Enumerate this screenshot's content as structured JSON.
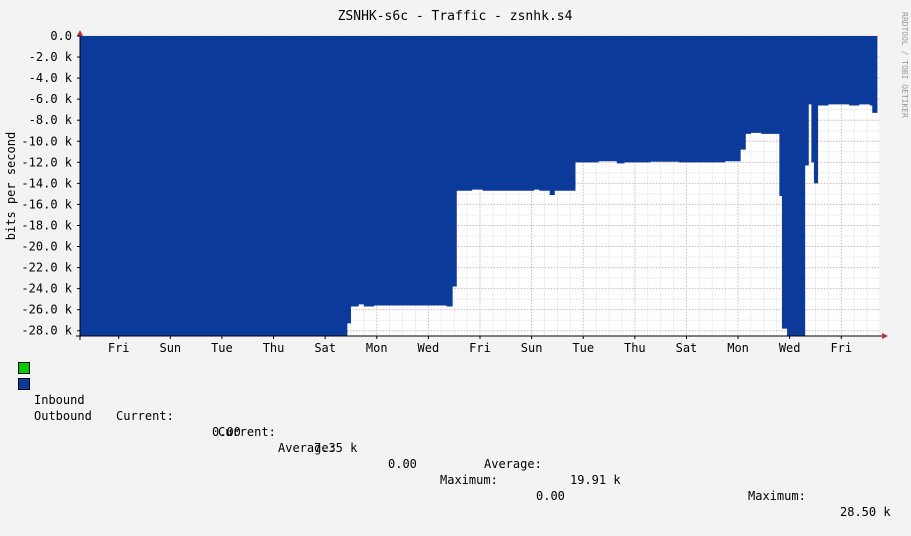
{
  "title": "ZSNHK-s6c - Traffic - zsnhk.s4",
  "side_text": "RRDTOOL / TOBI OETIKER",
  "colors": {
    "background": "#f3f3f3",
    "canvas": "#ffffff",
    "outbound": "#0b3a9a",
    "inbound": "#00cc00",
    "grid": "#e0b0b0",
    "axis": "#000000"
  },
  "legend": {
    "inbound": {
      "name": "Inbound",
      "current_label": "Current:",
      "current_value": "0.00",
      "average_label": "Average:",
      "average_value": "0.00",
      "maximum_label": "Maximum:",
      "maximum_value": "0.00"
    },
    "outbound": {
      "name": "Outbound",
      "current_label": "Current:",
      "current_value": "7.35 k",
      "average_label": "Average:",
      "average_value": "19.91 k",
      "maximum_label": "Maximum:",
      "maximum_value": "28.50 k"
    }
  },
  "chart_data": {
    "type": "area",
    "title": "ZSNHK-s6c - Traffic - zsnhk.s4",
    "ylabel": "bits per second",
    "ylim": [
      -28500,
      0
    ],
    "yticks": [
      0,
      -2000,
      -4000,
      -6000,
      -8000,
      -10000,
      -12000,
      -14000,
      -16000,
      -18000,
      -20000,
      -22000,
      -24000,
      -26000,
      -28000
    ],
    "ytick_labels": [
      "0.0",
      "-2.0 k",
      "-4.0 k",
      "-6.0 k",
      "-8.0 k",
      "-10.0 k",
      "-12.0 k",
      "-14.0 k",
      "-16.0 k",
      "-18.0 k",
      "-20.0 k",
      "-22.0 k",
      "-24.0 k",
      "-26.0 k",
      "-28.0 k"
    ],
    "xlim_days": [
      0,
      15.5
    ],
    "xticks": [
      {
        "day": 0.75,
        "label": "Fri"
      },
      {
        "day": 1.75,
        "label": "Sun"
      },
      {
        "day": 2.75,
        "label": "Tue"
      },
      {
        "day": 3.75,
        "label": "Thu"
      },
      {
        "day": 4.75,
        "label": "Sat"
      },
      {
        "day": 5.75,
        "label": "Mon"
      },
      {
        "day": 6.75,
        "label": "Wed"
      },
      {
        "day": 7.75,
        "label": "Fri"
      },
      {
        "day": 8.75,
        "label": "Sun"
      },
      {
        "day": 9.75,
        "label": "Tue"
      },
      {
        "day": 10.75,
        "label": "Thu"
      },
      {
        "day": 11.75,
        "label": "Sat"
      },
      {
        "day": 12.75,
        "label": "Mon"
      },
      {
        "day": 13.75,
        "label": "Wed"
      },
      {
        "day": 14.75,
        "label": "Fri"
      }
    ],
    "grid": true,
    "series": [
      {
        "name": "Outbound",
        "color": "#0b3a9a",
        "points": [
          [
            0,
            -28500
          ],
          [
            5.1,
            -28500
          ],
          [
            5.18,
            -27300
          ],
          [
            5.25,
            -25700
          ],
          [
            5.4,
            -25500
          ],
          [
            5.5,
            -25700
          ],
          [
            5.7,
            -25600
          ],
          [
            7.1,
            -25700
          ],
          [
            7.22,
            -23800
          ],
          [
            7.3,
            -14700
          ],
          [
            7.5,
            -14700
          ],
          [
            7.6,
            -14600
          ],
          [
            7.8,
            -14700
          ],
          [
            8.8,
            -14600
          ],
          [
            8.9,
            -14700
          ],
          [
            9.1,
            -15100
          ],
          [
            9.2,
            -14700
          ],
          [
            9.55,
            -14700
          ],
          [
            9.6,
            -12000
          ],
          [
            10.05,
            -11900
          ],
          [
            10.4,
            -12100
          ],
          [
            10.55,
            -12000
          ],
          [
            11.05,
            -11950
          ],
          [
            11.6,
            -12000
          ],
          [
            12.2,
            -12000
          ],
          [
            12.5,
            -11900
          ],
          [
            12.75,
            -11900
          ],
          [
            12.8,
            -10800
          ],
          [
            12.9,
            -9300
          ],
          [
            13.0,
            -9200
          ],
          [
            13.2,
            -9300
          ],
          [
            13.5,
            -9300
          ],
          [
            13.55,
            -15200
          ],
          [
            13.6,
            -27800
          ],
          [
            13.7,
            -28500
          ],
          [
            14.0,
            -28500
          ],
          [
            14.05,
            -12300
          ],
          [
            14.12,
            -6500
          ],
          [
            14.17,
            -12000
          ],
          [
            14.22,
            -14000
          ],
          [
            14.3,
            -6600
          ],
          [
            14.5,
            -6500
          ],
          [
            14.9,
            -6600
          ],
          [
            15.1,
            -6500
          ],
          [
            15.3,
            -6600
          ],
          [
            15.35,
            -7300
          ],
          [
            15.45,
            -7300
          ]
        ]
      },
      {
        "name": "Inbound",
        "color": "#00cc00",
        "points": []
      }
    ]
  }
}
